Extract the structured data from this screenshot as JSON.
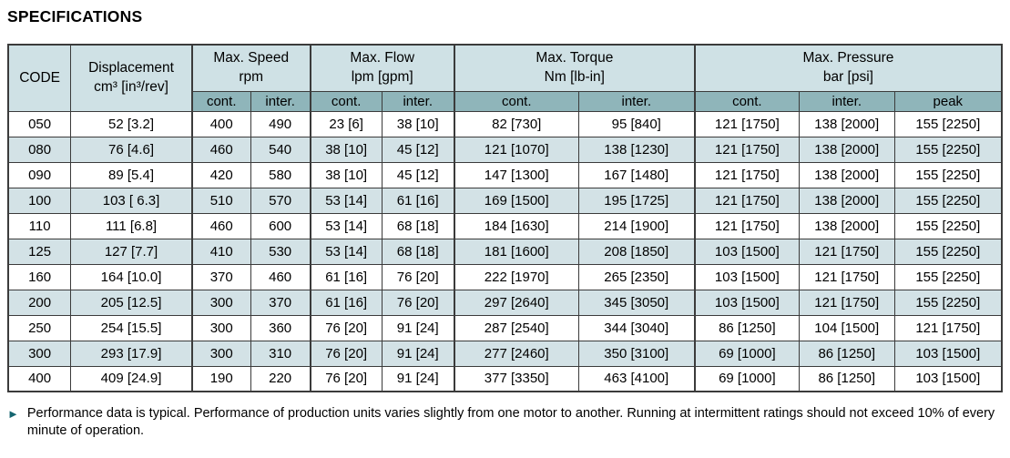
{
  "title": "SPECIFICATIONS",
  "colors": {
    "header_bg": "#cfe1e5",
    "subheader_bg": "#8fb5ba",
    "stripe_bg": "#d3e2e6",
    "border": "#3b3b3b",
    "footnote_arrow": "#156570"
  },
  "table": {
    "code_header": "CODE",
    "displacement_header": {
      "label": "Displacement",
      "sublabel": "cm³ [in³/rev]"
    },
    "groups": [
      {
        "label": "Max. Speed",
        "sublabel": "rpm",
        "cols": [
          "cont.",
          "inter."
        ]
      },
      {
        "label": "Max. Flow",
        "sublabel": "lpm [gpm]",
        "cols": [
          "cont.",
          "inter."
        ]
      },
      {
        "label": "Max. Torque",
        "sublabel": "Nm [lb-in]",
        "cols": [
          "cont.",
          "inter."
        ]
      },
      {
        "label": "Max. Pressure",
        "sublabel": "bar [psi]",
        "cols": [
          "cont.",
          "inter.",
          "peak"
        ]
      }
    ],
    "rows": [
      [
        "050",
        "52 [3.2]",
        "400",
        "490",
        "23 [6]",
        "38 [10]",
        "82 [730]",
        "95 [840]",
        "121 [1750]",
        "138 [2000]",
        "155 [2250]"
      ],
      [
        "080",
        "76 [4.6]",
        "460",
        "540",
        "38 [10]",
        "45 [12]",
        "121 [1070]",
        "138 [1230]",
        "121 [1750]",
        "138 [2000]",
        "155 [2250]"
      ],
      [
        "090",
        "89 [5.4]",
        "420",
        "580",
        "38 [10]",
        "45 [12]",
        "147 [1300]",
        "167 [1480]",
        "121 [1750]",
        "138 [2000]",
        "155 [2250]"
      ],
      [
        "100",
        "103 [ 6.3]",
        "510",
        "570",
        "53 [14]",
        "61 [16]",
        "169 [1500]",
        "195 [1725]",
        "121 [1750]",
        "138 [2000]",
        "155 [2250]"
      ],
      [
        "110",
        "111 [6.8]",
        "460",
        "600",
        "53 [14]",
        "68 [18]",
        "184 [1630]",
        "214 [1900]",
        "121 [1750]",
        "138 [2000]",
        "155 [2250]"
      ],
      [
        "125",
        "127 [7.7]",
        "410",
        "530",
        "53 [14]",
        "68 [18]",
        "181 [1600]",
        "208 [1850]",
        "103 [1500]",
        "121 [1750]",
        "155 [2250]"
      ],
      [
        "160",
        "164 [10.0]",
        "370",
        "460",
        "61 [16]",
        "76 [20]",
        "222 [1970]",
        "265 [2350]",
        "103 [1500]",
        "121 [1750]",
        "155 [2250]"
      ],
      [
        "200",
        "205 [12.5]",
        "300",
        "370",
        "61 [16]",
        "76 [20]",
        "297 [2640]",
        "345 [3050]",
        "103 [1500]",
        "121 [1750]",
        "155 [2250]"
      ],
      [
        "250",
        "254 [15.5]",
        "300",
        "360",
        "76 [20]",
        "91 [24]",
        "287 [2540]",
        "344 [3040]",
        "86 [1250]",
        "104 [1500]",
        "121 [1750]"
      ],
      [
        "300",
        "293 [17.9]",
        "300",
        "310",
        "76 [20]",
        "91 [24]",
        "277 [2460]",
        "350 [3100]",
        "69 [1000]",
        "86 [1250]",
        "103 [1500]"
      ],
      [
        "400",
        "409 [24.9]",
        "190",
        "220",
        "76 [20]",
        "91 [24]",
        "377 [3350]",
        "463 [4100]",
        "69 [1000]",
        "86 [1250]",
        "103 [1500]"
      ]
    ]
  },
  "footnote": {
    "bullet": "►",
    "text": "Performance data is typical. Performance of production units varies slightly from one motor to another. Running at intermittent ratings should not exceed 10% of every minute of operation."
  }
}
